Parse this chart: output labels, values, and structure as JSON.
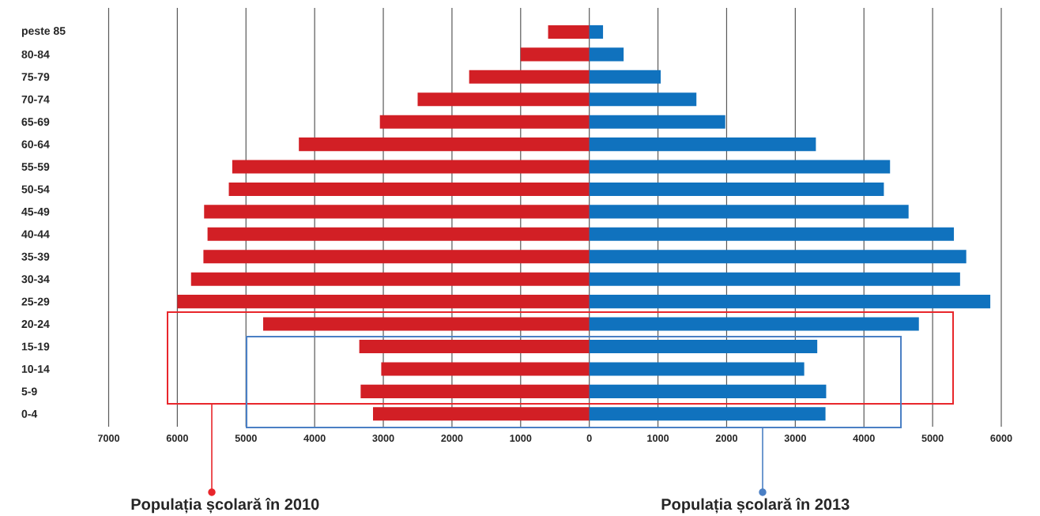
{
  "chart_data": {
    "type": "bar",
    "orientation": "horizontal",
    "categories": [
      "peste 85",
      "80-84",
      "75-79",
      "70-74",
      "65-69",
      "60-64",
      "55-59",
      "50-54",
      "45-49",
      "40-44",
      "35-39",
      "30-34",
      "25-29",
      "20-24",
      "15-19",
      "10-14",
      "5-9",
      "0-4"
    ],
    "series": [
      {
        "color": "#d21f25",
        "values": [
          -600,
          -1000,
          -1750,
          -2500,
          -3050,
          -4230,
          -5200,
          -5250,
          -5610,
          -5560,
          -5620,
          -5800,
          -6000,
          -4750,
          -3350,
          -3030,
          -3330,
          -3150
        ]
      },
      {
        "color": "#1072be",
        "values": [
          200,
          500,
          1040,
          1560,
          1980,
          3300,
          4380,
          4290,
          4650,
          5310,
          5490,
          5400,
          5840,
          4800,
          3320,
          3130,
          3450,
          3440
        ]
      }
    ],
    "xlim": [
      -7000,
      6000
    ],
    "xticks": [
      {
        "value": -7000,
        "label": "7000"
      },
      {
        "value": -6000,
        "label": "6000"
      },
      {
        "value": -5000,
        "label": "5000"
      },
      {
        "value": -4000,
        "label": "4000"
      },
      {
        "value": -3000,
        "label": "3000"
      },
      {
        "value": -2000,
        "label": "2000"
      },
      {
        "value": -1000,
        "label": "1000"
      },
      0,
      1000,
      2000,
      3000,
      4000,
      5000,
      6000
    ],
    "grid": "x",
    "stacked": true,
    "annotations": [
      "Populația școlară în 2010",
      "Populația școlară în 2013"
    ]
  }
}
